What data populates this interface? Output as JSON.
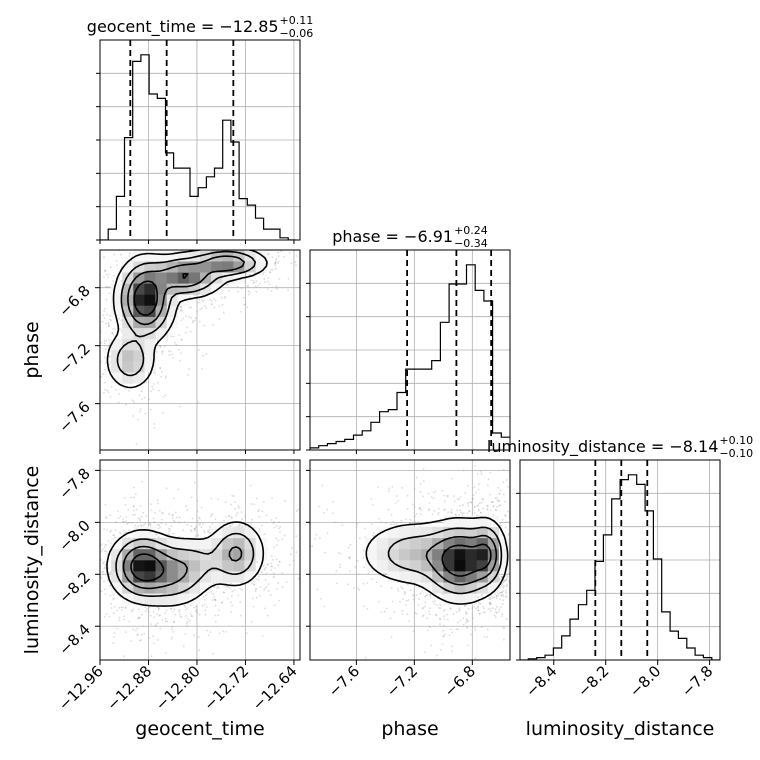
{
  "chart_data": {
    "type": "corner",
    "parameters": [
      {
        "name": "geocent_time",
        "axis_label": "geocent_time",
        "title_main": "geocent_time = −12.85",
        "title_sup": "+0.11",
        "title_sub": "−0.06",
        "range": [
          -12.96,
          -12.63
        ],
        "ticks": [
          -12.96,
          -12.88,
          -12.8,
          -12.72,
          -12.64
        ],
        "tick_labels": [
          "−12.96",
          "−12.88",
          "−12.80",
          "−12.72",
          "−12.64"
        ],
        "quantiles": [
          -12.91,
          -12.85,
          -12.74
        ],
        "histogram": {
          "bin_edges": [
            -12.96,
            -12.9465,
            -12.933,
            -12.9195,
            -12.906,
            -12.8925,
            -12.879,
            -12.8655,
            -12.852,
            -12.8385,
            -12.825,
            -12.8115,
            -12.798,
            -12.7845,
            -12.771,
            -12.7575,
            -12.744,
            -12.7305,
            -12.717,
            -12.7035,
            -12.69,
            -12.6765,
            -12.663,
            -12.6495,
            -12.636
          ],
          "counts": [
            0,
            0.05,
            0.2,
            0.47,
            0.82,
            0.85,
            0.67,
            0.65,
            0.4,
            0.33,
            0.33,
            0.2,
            0.24,
            0.29,
            0.33,
            0.55,
            0.45,
            0.19,
            0.16,
            0.1,
            0.05,
            0.05,
            0.01,
            0
          ]
        }
      },
      {
        "name": "phase",
        "axis_label": "phase",
        "title_main": "phase = −6.91",
        "title_sup": "+0.24",
        "title_sub": "−0.34",
        "range": [
          -7.92,
          -6.54
        ],
        "ticks": [
          -7.6,
          -7.2,
          -6.8
        ],
        "tick_labels": [
          "−7.6",
          "−7.2",
          "−6.8"
        ],
        "quantiles": [
          -7.25,
          -6.91,
          -6.67
        ],
        "histogram": {
          "bin_edges": [
            -7.92,
            -7.86,
            -7.8,
            -7.74,
            -7.68,
            -7.62,
            -7.56,
            -7.5,
            -7.44,
            -7.38,
            -7.32,
            -7.26,
            -7.2,
            -7.14,
            -7.08,
            -7.02,
            -6.96,
            -6.9,
            -6.84,
            -6.78,
            -6.72,
            -6.66,
            -6.6,
            -6.54
          ],
          "counts": [
            0.01,
            0.02,
            0.03,
            0.04,
            0.05,
            0.07,
            0.09,
            0.13,
            0.18,
            0.19,
            0.27,
            0.38,
            0.38,
            0.38,
            0.42,
            0.6,
            0.78,
            0.78,
            0.87,
            0.75,
            0.7,
            0.08,
            0.06
          ]
        }
      },
      {
        "name": "luminosity_distance",
        "axis_label": "luminosity_distance",
        "title_main": "luminosity_distance = −8.14",
        "title_sup": "+0.10",
        "title_sub": "−0.10",
        "range": [
          -8.53,
          -7.76
        ],
        "ticks": [
          -8.4,
          -8.2,
          -8.0,
          -7.8
        ],
        "tick_labels": [
          "−8.4",
          "−8.2",
          "−8.0",
          "−7.8"
        ],
        "quantiles": [
          -8.24,
          -8.14,
          -8.04
        ],
        "histogram": {
          "bin_edges": [
            -8.53,
            -8.4979,
            -8.4658,
            -8.4337,
            -8.4016,
            -8.3695,
            -8.3374,
            -8.3053,
            -8.2732,
            -8.2411,
            -8.209,
            -8.1769,
            -8.1448,
            -8.1127,
            -8.0806,
            -8.0485,
            -8.0164,
            -7.9843,
            -7.9522,
            -7.9201,
            -7.888,
            -7.8559,
            -7.8238,
            -7.7917,
            -7.7596
          ],
          "counts": [
            0,
            0.005,
            0.01,
            0.02,
            0.05,
            0.1,
            0.17,
            0.23,
            0.29,
            0.41,
            0.52,
            0.67,
            0.75,
            0.77,
            0.73,
            0.62,
            0.42,
            0.2,
            0.12,
            0.09,
            0.05,
            0.02,
            0.01,
            0
          ]
        }
      }
    ],
    "joint_densities": [
      {
        "x": "geocent_time",
        "y": "phase",
        "modes": [
          {
            "x": -12.885,
            "y": -6.88,
            "sx": 0.022,
            "sy": 0.13,
            "w": 1.0
          },
          {
            "x": -12.82,
            "y": -6.72,
            "sx": 0.03,
            "sy": 0.07,
            "w": 0.7
          },
          {
            "x": -12.75,
            "y": -6.63,
            "sx": 0.03,
            "sy": 0.05,
            "w": 0.65
          },
          {
            "x": -12.91,
            "y": -7.3,
            "sx": 0.02,
            "sy": 0.1,
            "w": 0.35
          }
        ]
      },
      {
        "x": "geocent_time",
        "y": "luminosity_distance",
        "modes": [
          {
            "x": -12.89,
            "y": -8.17,
            "sx": 0.025,
            "sy": 0.06,
            "w": 1.0
          },
          {
            "x": -12.84,
            "y": -8.2,
            "sx": 0.03,
            "sy": 0.06,
            "w": 0.45
          },
          {
            "x": -12.735,
            "y": -8.12,
            "sx": 0.022,
            "sy": 0.06,
            "w": 0.5
          },
          {
            "x": -12.8,
            "y": -8.15,
            "sx": 0.03,
            "sy": 0.05,
            "w": 0.2
          }
        ]
      },
      {
        "x": "phase",
        "y": "luminosity_distance",
        "modes": [
          {
            "x": -6.88,
            "y": -8.15,
            "sx": 0.12,
            "sy": 0.07,
            "w": 1.0
          },
          {
            "x": -6.7,
            "y": -8.12,
            "sx": 0.06,
            "sy": 0.06,
            "w": 0.6
          },
          {
            "x": -7.2,
            "y": -8.12,
            "sx": 0.18,
            "sy": 0.06,
            "w": 0.35
          }
        ]
      }
    ],
    "contour_levels": [
      0.06,
      0.2,
      0.42,
      0.7
    ],
    "grid": true,
    "style": {
      "line": "#000000",
      "scatter": "#9a9a9a",
      "grid": "#b0b0b0",
      "axis": "#000000"
    }
  }
}
